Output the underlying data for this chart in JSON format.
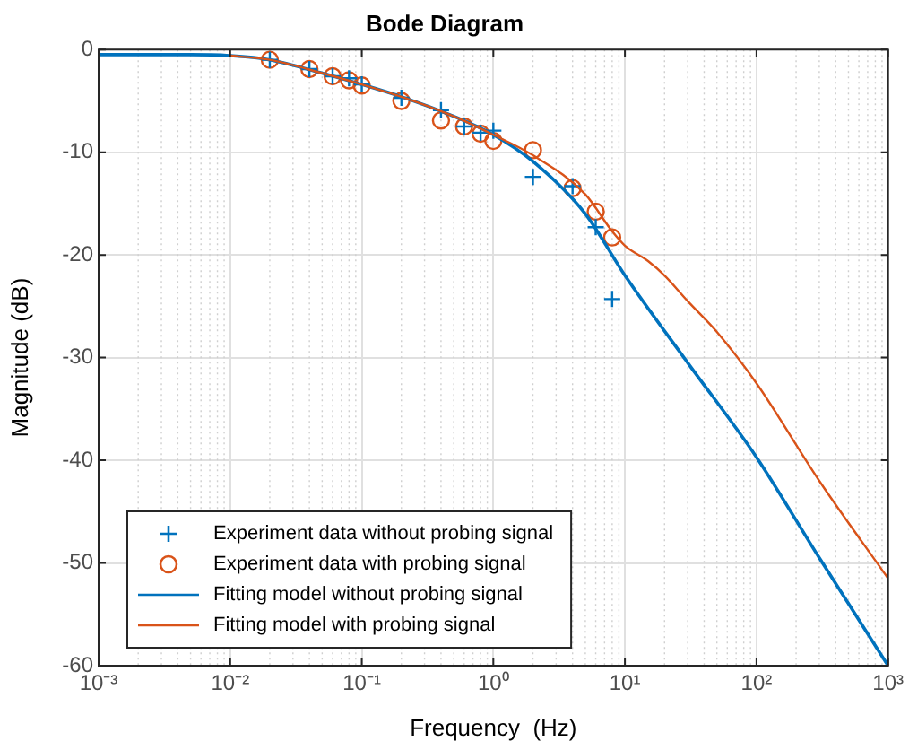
{
  "chart_data": {
    "type": "scatter",
    "title": "Bode Diagram",
    "xlabel": "Frequency  (Hz)",
    "ylabel": "Magnitude (dB)",
    "log": "x",
    "grid": true,
    "legend": "bottom left",
    "xlim": [
      0.001,
      1000
    ],
    "xticks": [
      {
        "value": 0.001,
        "label": "10⁻³"
      },
      {
        "value": 0.01,
        "label": "10⁻²"
      },
      {
        "value": 0.1,
        "label": "10⁻¹"
      },
      {
        "value": 1,
        "label": "10⁰"
      },
      {
        "value": 10,
        "label": "10¹"
      },
      {
        "value": 100,
        "label": "10²"
      },
      {
        "value": 1000,
        "label": "10³"
      }
    ],
    "ylim": [
      -60,
      0
    ],
    "yticks": [
      -60,
      -50,
      -40,
      -30,
      -20,
      -10,
      0
    ],
    "series": [
      {
        "name": "Experiment data without probing signal",
        "marker": "cross",
        "color": "#0072bd",
        "x": [
          0.02,
          0.04,
          0.06,
          0.08,
          0.1,
          0.2,
          0.4,
          0.6,
          0.8,
          1,
          2,
          4,
          6,
          8
        ],
        "values": [
          -1.0,
          -1.9,
          -2.6,
          -2.8,
          -3.4,
          -4.7,
          -5.9,
          -7.5,
          -8.1,
          -7.9,
          -12.4,
          -13.3,
          -17.3,
          -24.3
        ]
      },
      {
        "name": "Experiment data with probing signal",
        "marker": "circle",
        "color": "#d95319",
        "x": [
          0.02,
          0.04,
          0.06,
          0.08,
          0.1,
          0.2,
          0.4,
          0.6,
          0.8,
          1,
          2,
          4,
          6,
          8
        ],
        "values": [
          -1.0,
          -1.9,
          -2.6,
          -3.0,
          -3.5,
          -5.0,
          -6.9,
          -7.5,
          -8.2,
          -8.9,
          -9.8,
          -13.5,
          -15.8,
          -18.3
        ]
      },
      {
        "name": "Fitting model without probing signal",
        "type": "line",
        "marker": "none",
        "line_style": "solid",
        "color": "#0072bd",
        "x": [
          0.001,
          0.005,
          0.01,
          0.02,
          0.05,
          0.1,
          0.2,
          0.5,
          1,
          2,
          5,
          10,
          30,
          100,
          300,
          1000
        ],
        "values": [
          -0.5,
          -0.5,
          -0.6,
          -1.0,
          -2.3,
          -3.4,
          -4.6,
          -6.5,
          -8.3,
          -10.9,
          -16,
          -22,
          -30.5,
          -39.7,
          -49.5,
          -60
        ]
      },
      {
        "name": "Fitting model with probing signal",
        "type": "line",
        "marker": "none",
        "line_style": "solid",
        "color": "#d95319",
        "x": [
          0.01,
          0.02,
          0.05,
          0.1,
          0.2,
          0.5,
          1,
          2,
          5,
          8,
          10,
          15,
          20,
          30,
          50,
          100,
          300,
          1000
        ],
        "values": [
          -0.6,
          -1.0,
          -2.3,
          -3.4,
          -4.6,
          -6.5,
          -8.3,
          -10.3,
          -14.1,
          -17.7,
          -19.1,
          -20.6,
          -22,
          -24.5,
          -27.5,
          -32.5,
          -42,
          -51.5
        ]
      }
    ]
  }
}
